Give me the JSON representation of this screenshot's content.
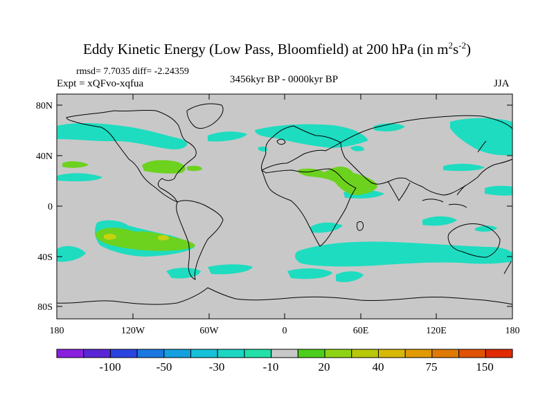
{
  "title": {
    "main": "Eddy Kinetic Energy (Low Pass, Bloomfield) at 200 hPa (in m",
    "sup1": "2",
    "mid": "s",
    "sup2": "-2",
    "end": ")"
  },
  "stats": "rmsd= 7.7035 diff= -2.24359",
  "expt": "Expt = xQFvo-xqfua",
  "period": "3456kyr BP - 0000kyr BP",
  "season": "JJA",
  "axes": {
    "y_ticks": [
      "80N",
      "40N",
      "0",
      "40S",
      "80S"
    ],
    "x_ticks": [
      "180",
      "120W",
      "60W",
      "0",
      "60E",
      "120E",
      "180"
    ]
  },
  "colorbar": {
    "labels": [
      "-100",
      "-50",
      "-30",
      "-10",
      "20",
      "40",
      "75",
      "150"
    ],
    "colors": [
      "#8a1fe0",
      "#5a25d6",
      "#2a44e0",
      "#1a78e0",
      "#14a0e0",
      "#16c0d8",
      "#1cd6c2",
      "#22e0a8",
      "#c8c8c8",
      "#4ccf1c",
      "#8fd414",
      "#b8c80a",
      "#d8b806",
      "#e09a04",
      "#e07a04",
      "#e05204",
      "#e02a04"
    ]
  },
  "map": {
    "land_color": "#c8c8c8",
    "cyan_color": "#1edcc0",
    "green_color": "#6cd21e",
    "yellow_color": "#c6d20e"
  }
}
